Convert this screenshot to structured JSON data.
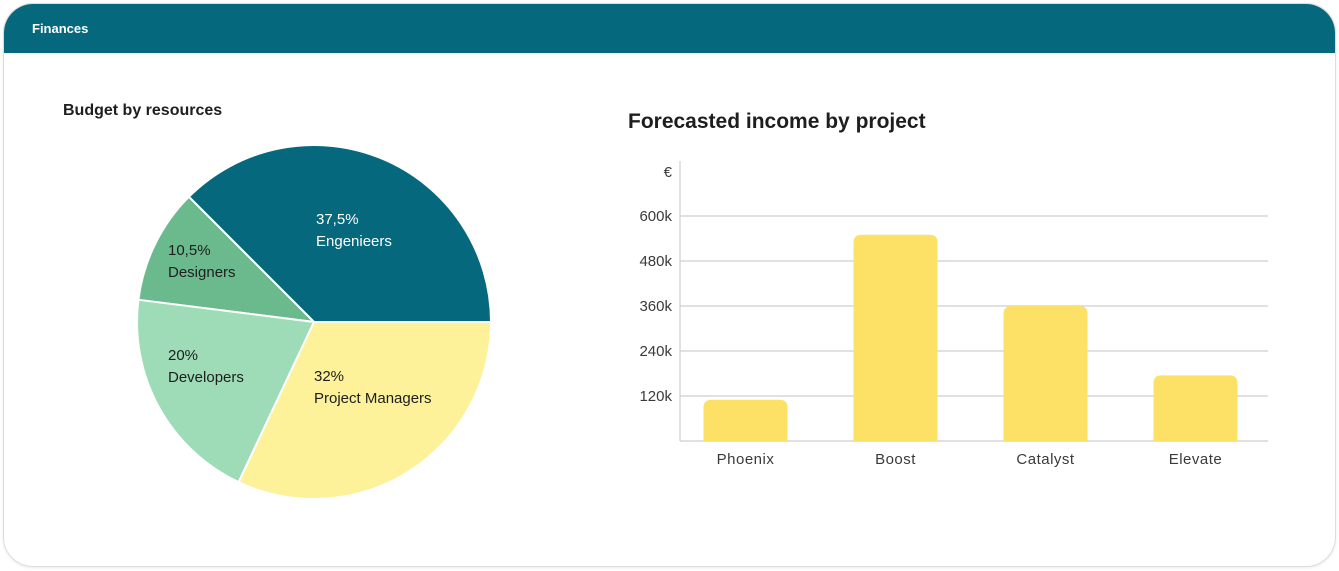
{
  "header": {
    "title": "Finances"
  },
  "chart_data": [
    {
      "type": "pie",
      "title": "Budget by resources",
      "slices": [
        {
          "label": "Engenieers",
          "value_label": "37,5%",
          "value": 37.5,
          "color": "#06687c",
          "text": "#ffffff"
        },
        {
          "label": "Designers",
          "value_label": "10,5%",
          "value": 10.5,
          "color": "#6aba8e",
          "text": "#1e1e1e"
        },
        {
          "label": "Developers",
          "value_label": "20%",
          "value": 20,
          "color": "#9edcb8",
          "text": "#1e1e1e"
        },
        {
          "label": "Project Managers",
          "value_label": "32%",
          "value": 32,
          "color": "#fdf199",
          "text": "#1e1e1e"
        }
      ]
    },
    {
      "type": "bar",
      "title": "Forecasted income by project",
      "ylabel": "€",
      "categories": [
        "Phoenix",
        "Boost",
        "Catalyst",
        "Elevate"
      ],
      "values": [
        110000,
        550000,
        360000,
        175000
      ],
      "yticks": [
        120000,
        240000,
        360000,
        480000,
        600000
      ],
      "ytick_labels": [
        "120k",
        "240k",
        "360k",
        "480k",
        "600k"
      ],
      "ylim": [
        0,
        600000
      ],
      "grid": true,
      "color": "#fce166"
    }
  ]
}
